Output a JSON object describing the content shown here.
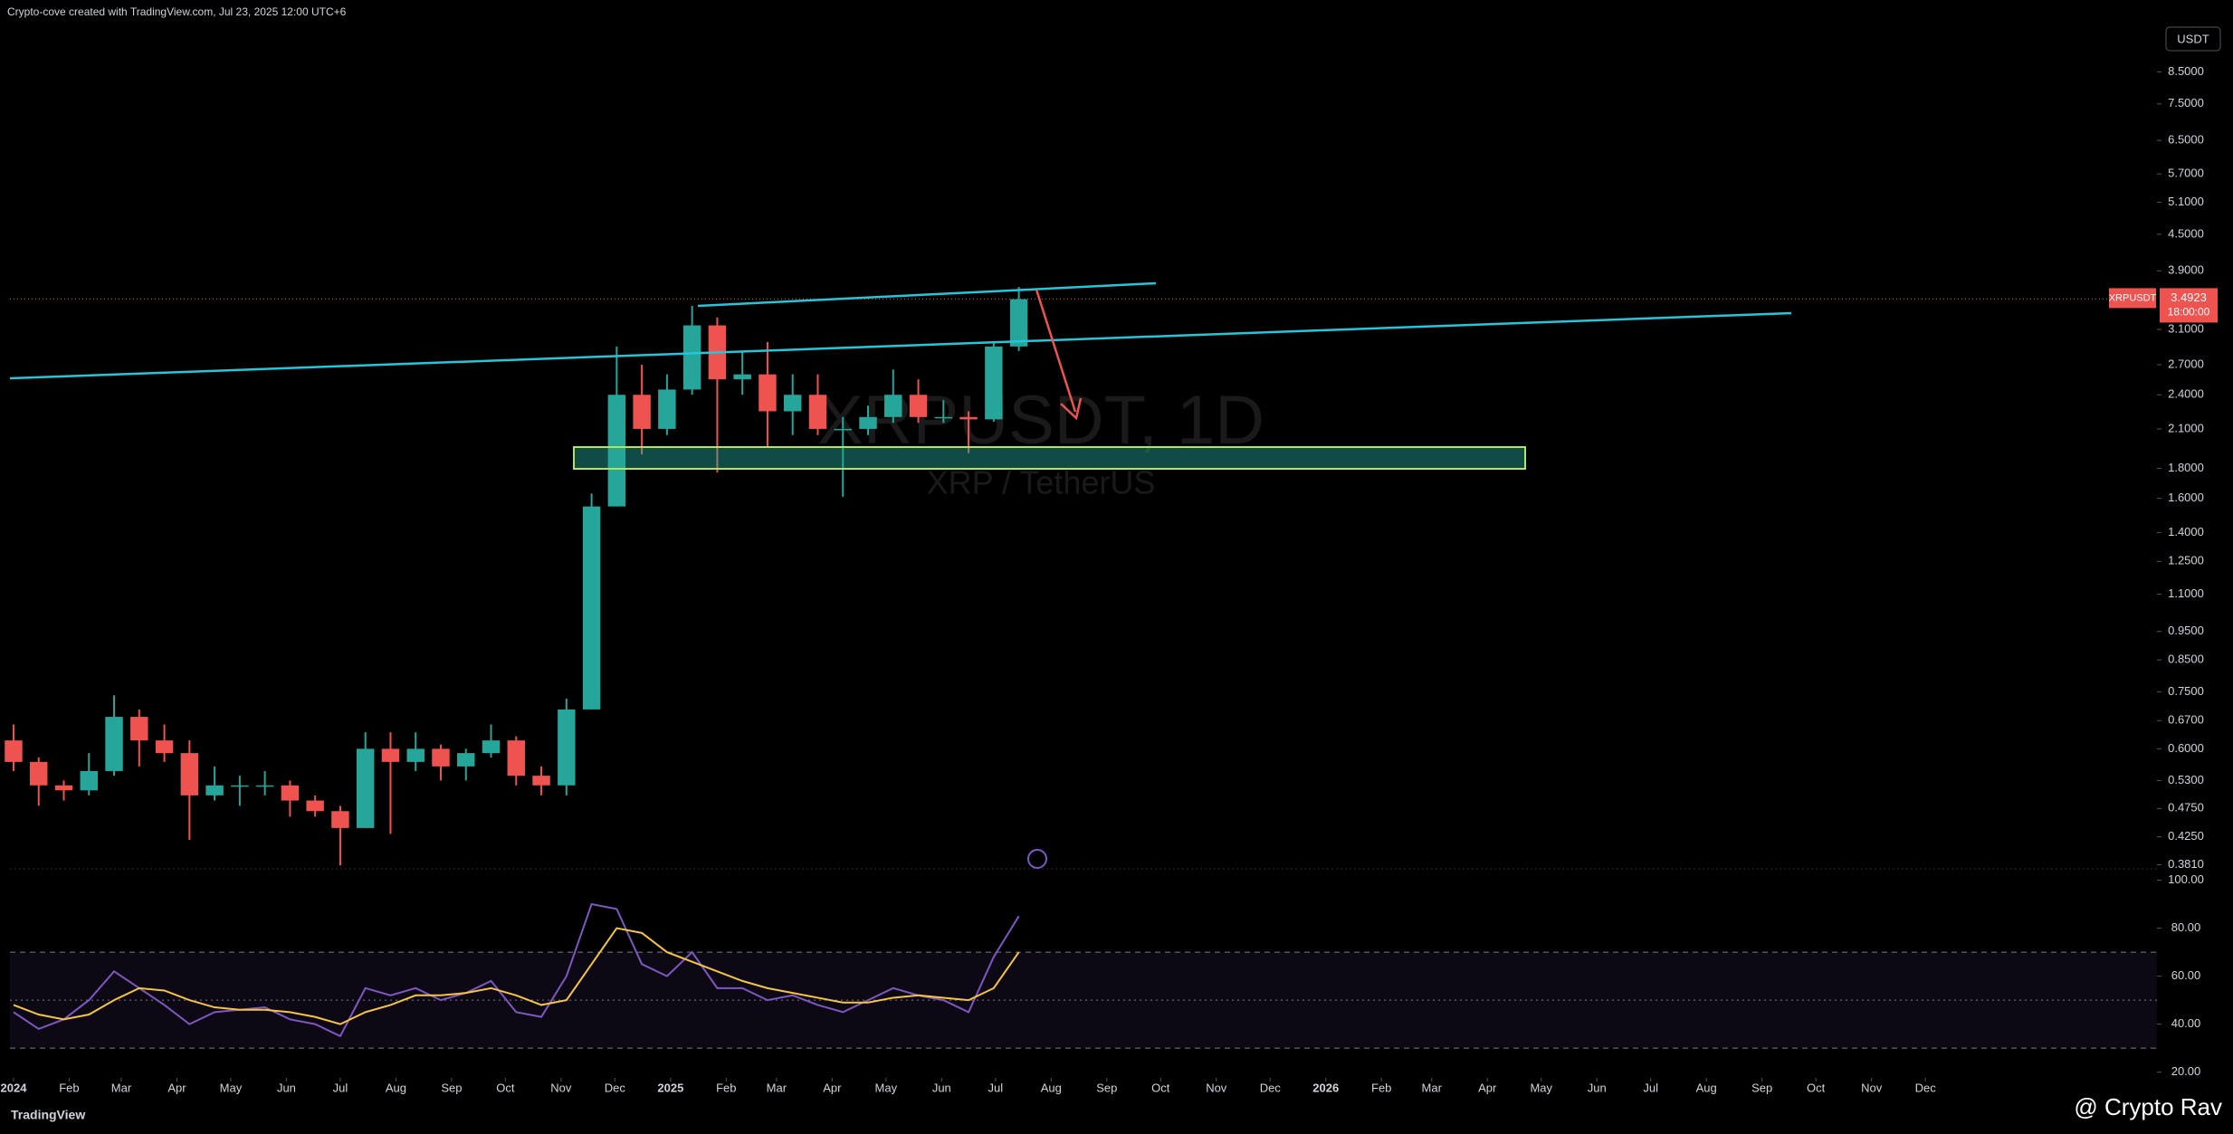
{
  "header": {
    "text": "Crypto-cove created with TradingView.com, Jul 23, 2025 12:00 UTC+6"
  },
  "footer": {
    "brand": "TradingView",
    "watermark": "@ Crypto Rav"
  },
  "chart_data": {
    "type": "candlestick",
    "title": "XRPUSDT, 1D",
    "subtitle": "XRP / TetherUS",
    "currency": "USDT",
    "symbol_label": "XRPUSDT",
    "last_price": 3.4923,
    "last_price_label": "3.4923",
    "countdown": "18:00:00",
    "log_scale": true,
    "up_color": "#26a69a",
    "down_color": "#ef5350",
    "x": [
      0,
      14,
      28,
      42,
      56,
      70,
      84,
      98,
      112,
      126,
      140,
      154,
      168,
      182,
      196,
      210,
      224,
      238,
      252,
      266,
      280,
      294,
      308,
      322,
      336,
      350,
      364,
      378,
      392,
      406,
      420,
      434,
      448,
      462,
      476,
      490,
      504,
      518,
      532,
      546,
      560
    ],
    "open": [
      0.62,
      0.57,
      0.52,
      0.51,
      0.55,
      0.68,
      0.62,
      0.59,
      0.5,
      0.52,
      0.52,
      0.52,
      0.49,
      0.47,
      0.44,
      0.6,
      0.57,
      0.6,
      0.56,
      0.59,
      0.62,
      0.54,
      0.52,
      0.7,
      1.55,
      2.4,
      2.1,
      2.45,
      3.15,
      2.55,
      2.6,
      2.25,
      2.4,
      2.1,
      2.1,
      2.2,
      2.4,
      2.2,
      2.2,
      2.18,
      2.9
    ],
    "high": [
      0.66,
      0.58,
      0.53,
      0.59,
      0.74,
      0.7,
      0.66,
      0.62,
      0.56,
      0.54,
      0.55,
      0.53,
      0.5,
      0.48,
      0.64,
      0.64,
      0.64,
      0.61,
      0.6,
      0.66,
      0.63,
      0.56,
      0.73,
      1.63,
      2.9,
      2.7,
      2.6,
      3.4,
      3.25,
      2.85,
      2.95,
      2.6,
      2.6,
      2.2,
      2.3,
      2.65,
      2.55,
      2.35,
      2.25,
      2.95,
      3.66
    ],
    "low": [
      0.55,
      0.48,
      0.49,
      0.5,
      0.54,
      0.56,
      0.57,
      0.42,
      0.49,
      0.48,
      0.5,
      0.46,
      0.46,
      0.38,
      0.44,
      0.43,
      0.55,
      0.53,
      0.53,
      0.58,
      0.52,
      0.5,
      0.5,
      0.7,
      1.55,
      1.9,
      2.05,
      2.4,
      1.77,
      2.4,
      1.95,
      2.05,
      2.05,
      1.61,
      2.05,
      2.15,
      2.15,
      2.15,
      1.91,
      2.16,
      2.85
    ],
    "close": [
      0.57,
      0.52,
      0.51,
      0.55,
      0.68,
      0.62,
      0.59,
      0.5,
      0.52,
      0.52,
      0.52,
      0.49,
      0.47,
      0.44,
      0.6,
      0.57,
      0.6,
      0.56,
      0.59,
      0.62,
      0.54,
      0.52,
      0.7,
      1.55,
      2.4,
      2.1,
      2.45,
      3.15,
      2.55,
      2.6,
      2.25,
      2.4,
      2.1,
      2.1,
      2.2,
      2.4,
      2.2,
      2.2,
      2.18,
      2.9,
      3.49
    ],
    "xlim": [
      -2,
      1194
    ],
    "xticks": [
      {
        "value": 0,
        "label": "2024"
      },
      {
        "value": 31,
        "label": "Feb"
      },
      {
        "value": 60,
        "label": "Mar"
      },
      {
        "value": 91,
        "label": "Apr"
      },
      {
        "value": 121,
        "label": "May"
      },
      {
        "value": 152,
        "label": "Jun"
      },
      {
        "value": 182,
        "label": "Jul"
      },
      {
        "value": 213,
        "label": "Aug"
      },
      {
        "value": 244,
        "label": "Sep"
      },
      {
        "value": 274,
        "label": "Oct"
      },
      {
        "value": 305,
        "label": "Nov"
      },
      {
        "value": 335,
        "label": "Dec"
      },
      {
        "value": 366,
        "label": "2025"
      },
      {
        "value": 397,
        "label": "Feb"
      },
      {
        "value": 425,
        "label": "Mar"
      },
      {
        "value": 456,
        "label": "Apr"
      },
      {
        "value": 486,
        "label": "May"
      },
      {
        "value": 517,
        "label": "Jun"
      },
      {
        "value": 547,
        "label": "Jul"
      },
      {
        "value": 578,
        "label": "Aug"
      },
      {
        "value": 609,
        "label": "Sep"
      },
      {
        "value": 639,
        "label": "Oct"
      },
      {
        "value": 670,
        "label": "Nov"
      },
      {
        "value": 700,
        "label": "Dec"
      },
      {
        "value": 731,
        "label": "2026"
      },
      {
        "value": 762,
        "label": "Feb"
      },
      {
        "value": 790,
        "label": "Mar"
      },
      {
        "value": 821,
        "label": "Apr"
      },
      {
        "value": 851,
        "label": "May"
      },
      {
        "value": 882,
        "label": "Jun"
      },
      {
        "value": 912,
        "label": "Jul"
      },
      {
        "value": 943,
        "label": "Aug"
      },
      {
        "value": 974,
        "label": "Sep"
      },
      {
        "value": 1004,
        "label": "Oct"
      },
      {
        "value": 1035,
        "label": "Nov"
      },
      {
        "value": 1065,
        "label": "Dec"
      }
    ],
    "ylim": [
      0.375,
      10.2
    ],
    "yticks": [
      {
        "value": 0.381,
        "label": "0.3810"
      },
      {
        "value": 0.425,
        "label": "0.4250"
      },
      {
        "value": 0.475,
        "label": "0.4750"
      },
      {
        "value": 0.53,
        "label": "0.5300"
      },
      {
        "value": 0.6,
        "label": "0.6000"
      },
      {
        "value": 0.67,
        "label": "0.6700"
      },
      {
        "value": 0.75,
        "label": "0.7500"
      },
      {
        "value": 0.85,
        "label": "0.8500"
      },
      {
        "value": 0.95,
        "label": "0.9500"
      },
      {
        "value": 1.1,
        "label": "1.1000"
      },
      {
        "value": 1.25,
        "label": "1.2500"
      },
      {
        "value": 1.4,
        "label": "1.4000"
      },
      {
        "value": 1.6,
        "label": "1.6000"
      },
      {
        "value": 1.8,
        "label": "1.8000"
      },
      {
        "value": 2.1,
        "label": "2.1000"
      },
      {
        "value": 2.4,
        "label": "2.4000"
      },
      {
        "value": 2.7,
        "label": "2.7000"
      },
      {
        "value": 3.1,
        "label": "3.1000"
      },
      {
        "value": 3.9,
        "label": "3.9000"
      },
      {
        "value": 4.5,
        "label": "4.5000"
      },
      {
        "value": 5.1,
        "label": "5.1000"
      },
      {
        "value": 5.7,
        "label": "5.7000"
      },
      {
        "value": 6.5,
        "label": "6.5000"
      },
      {
        "value": 7.5,
        "label": "7.5000"
      },
      {
        "value": 8.5,
        "label": "8.5000"
      }
    ],
    "rsi": [
      45,
      38,
      42,
      50,
      62,
      55,
      48,
      40,
      45,
      46,
      47,
      42,
      40,
      35,
      55,
      52,
      55,
      50,
      53,
      58,
      45,
      43,
      60,
      90,
      88,
      65,
      60,
      70,
      55,
      55,
      50,
      52,
      48,
      45,
      50,
      55,
      52,
      50,
      45,
      68,
      85
    ],
    "rsi_ma": [
      48,
      44,
      42,
      44,
      50,
      55,
      54,
      50,
      47,
      46,
      46,
      45,
      43,
      40,
      45,
      48,
      52,
      52,
      53,
      55,
      52,
      48,
      50,
      65,
      80,
      78,
      70,
      66,
      62,
      58,
      55,
      53,
      51,
      49,
      49,
      51,
      52,
      51,
      50,
      55,
      70
    ],
    "rsi_color": "#7e57c2",
    "rsi_ma_color": "#f5c542",
    "rsi_band": [
      30,
      70
    ],
    "rsi_mid": 50,
    "y2lim": [
      17.6,
      103.6
    ],
    "y2ticks": [
      {
        "value": 20,
        "label": "20.00"
      },
      {
        "value": 40,
        "label": "40.00"
      },
      {
        "value": 60,
        "label": "60.00"
      },
      {
        "value": 80,
        "label": "80.00"
      },
      {
        "value": 100,
        "label": "100.00"
      }
    ]
  }
}
